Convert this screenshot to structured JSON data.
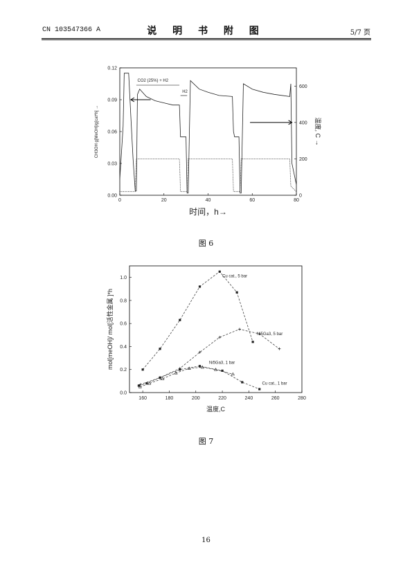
{
  "header": {
    "patent_no": "CN 103547366 A",
    "section_title": "说 明 书 附 图",
    "page": "5/7 页"
  },
  "figures": [
    {
      "caption": "图 6"
    },
    {
      "caption": "图 7"
    }
  ],
  "page_number": "16",
  "chart_data": [
    {
      "type": "line",
      "xlabel": "时间，h→",
      "ylabel": "CH3OH g[MeOH]/g[cat*h] →",
      "ylabel_right": "温度, C →",
      "xlim": [
        0,
        80
      ],
      "ylim": [
        0,
        0.12
      ],
      "ylim_right": [
        0,
        700
      ],
      "x_ticks": [
        "0",
        "20",
        "40",
        "60",
        "80"
      ],
      "y_ticks": [
        "0.00",
        "0.03",
        "0.06",
        "0.09",
        "0.12"
      ],
      "y_ticks_right": [
        "0",
        "200",
        "400",
        "600"
      ],
      "annotations": [
        "CO2 (25%) + H2",
        "H2"
      ],
      "series": [
        {
          "x": [
            0,
            1.5,
            2,
            4,
            5,
            6,
            7,
            7.5,
            8,
            9,
            12,
            16,
            20,
            24,
            27,
            27.5,
            28,
            30,
            30.5,
            31,
            32,
            36,
            40,
            45,
            51,
            51.5,
            52,
            54,
            54.5,
            55,
            56,
            60,
            65,
            70,
            77,
            77.5,
            78,
            80
          ],
          "values": [
            0.015,
            0.065,
            0.115,
            0.115,
            0.075,
            0.035,
            0.004,
            0.004,
            0.095,
            0.1,
            0.093,
            0.089,
            0.087,
            0.085,
            0.085,
            0.055,
            0.055,
            0.055,
            0.002,
            0.002,
            0.108,
            0.1,
            0.097,
            0.094,
            0.093,
            0.06,
            0.055,
            0.055,
            0.002,
            0.002,
            0.105,
            0.1,
            0.097,
            0.095,
            0.093,
            0.105,
            0.03,
            0.01
          ]
        },
        {
          "x": [
            0,
            7,
            7.5,
            27,
            27.5,
            30,
            30.5,
            31,
            51,
            51.5,
            54,
            54.5,
            55,
            77,
            77.5,
            80
          ],
          "values": [
            20,
            20,
            200,
            200,
            20,
            20,
            20,
            200,
            200,
            20,
            20,
            20,
            200,
            200,
            50,
            20
          ]
        }
      ]
    },
    {
      "type": "line",
      "xlabel": "温度,C",
      "ylabel": "mol[meOH]/ mol[活性金属 ]*h",
      "xlim": [
        150,
        280
      ],
      "ylim": [
        0,
        1.1
      ],
      "x_ticks": [
        "160",
        "180",
        "200",
        "220",
        "240",
        "260",
        "280"
      ],
      "y_ticks": [
        "0.0",
        "0.2",
        "0.4",
        "0.6",
        "0.8",
        "1.0"
      ],
      "series": [
        {
          "name": "Cu cat., 5 bar",
          "x": [
            160,
            173,
            188,
            203,
            218,
            231,
            243
          ],
          "values": [
            0.2,
            0.38,
            0.63,
            0.92,
            1.05,
            0.87,
            0.44
          ]
        },
        {
          "name": "Ni5Ga3, 5 bar",
          "x": [
            158,
            173,
            188,
            203,
            218,
            233,
            248,
            263
          ],
          "values": [
            0.07,
            0.13,
            0.21,
            0.35,
            0.48,
            0.55,
            0.51,
            0.38
          ]
        },
        {
          "name": "Ni5Ga3, 1 bar",
          "x": [
            158,
            165,
            175,
            185,
            195,
            205,
            215,
            228
          ],
          "values": [
            0.05,
            0.08,
            0.12,
            0.17,
            0.21,
            0.22,
            0.2,
            0.16
          ]
        },
        {
          "name": "Cu cat., 1 bar",
          "x": [
            157,
            163,
            173,
            188,
            203,
            220,
            235,
            248
          ],
          "values": [
            0.06,
            0.08,
            0.13,
            0.2,
            0.23,
            0.19,
            0.09,
            0.03
          ]
        }
      ]
    }
  ]
}
